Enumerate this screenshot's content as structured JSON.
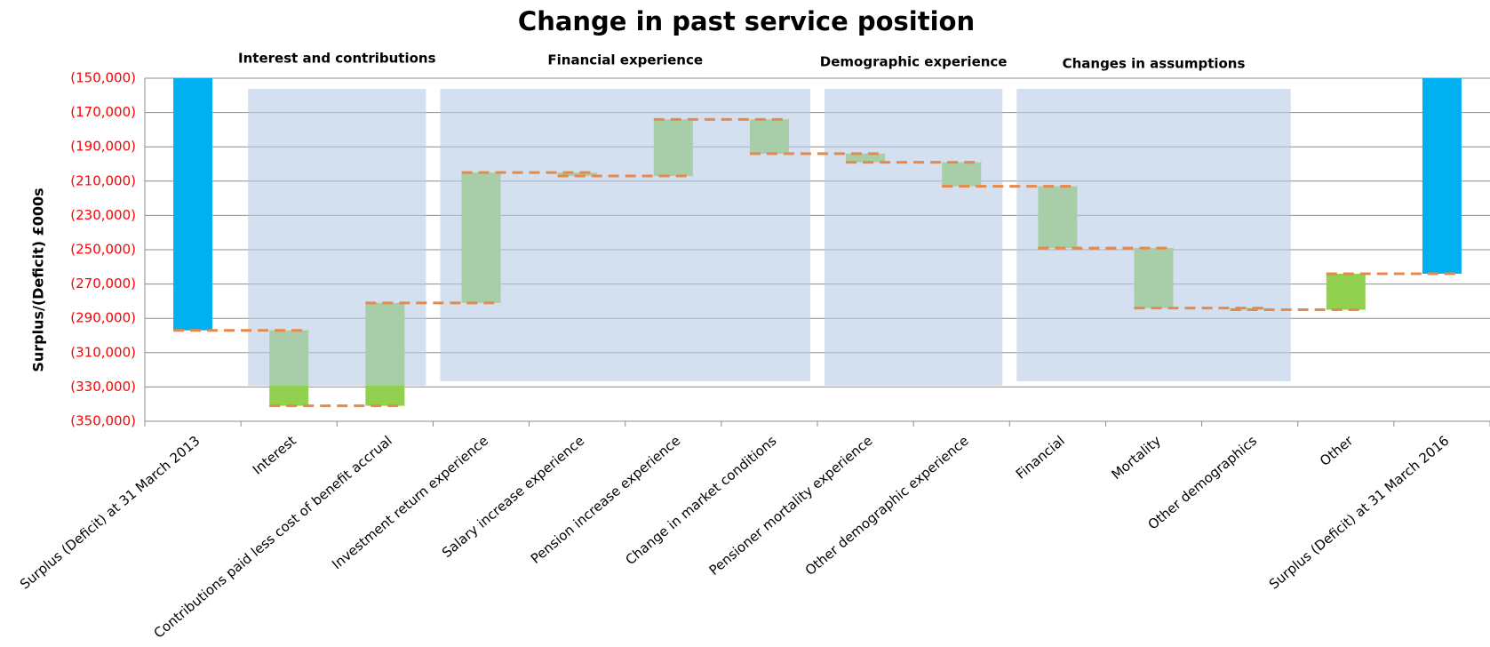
{
  "chart_data": {
    "type": "waterfall",
    "title": "Change in past service position",
    "y_label": "Surplus/(Deficit)  £000s",
    "categories": [
      "Surplus (Deficit) at 31 March 2013",
      "Interest",
      "Contributions paid less cost of benefit accrual",
      "Investment return experience",
      "Salary increase experience",
      "Pension increase experience",
      "Change in market conditions",
      "Pensioner mortality experience",
      "Other demographic experience",
      "Financial",
      "Mortality",
      "Other demographics",
      "Other",
      "Surplus (Deficit) at 31 March 2016"
    ],
    "values": [
      -297000,
      -44000,
      60000,
      76000,
      -2000,
      33000,
      -20000,
      -5000,
      -14000,
      -36000,
      -35000,
      -1000,
      21000,
      -264000
    ],
    "total_color": "#00b0f0",
    "change_color": "#92d050",
    "connector_color": "#e8894a",
    "group_color": "#b8cce4",
    "groups": [
      {
        "label": "Interest and contributions",
        "from": 1,
        "to": 2
      },
      {
        "label": "Financial experience",
        "from": 3,
        "to": 6
      },
      {
        "label": "Demographic experience",
        "from": 7,
        "to": 8
      },
      {
        "label": "Changes in assumptions",
        "from": 9,
        "to": 11
      }
    ],
    "ylim": [
      -350000,
      -150000
    ],
    "yticks": [
      {
        "value": -150000,
        "label": "(150,000)"
      },
      {
        "value": -170000,
        "label": "(170,000)"
      },
      {
        "value": -190000,
        "label": "(190,000)"
      },
      {
        "value": -210000,
        "label": "(210,000)"
      },
      {
        "value": -230000,
        "label": "(230,000)"
      },
      {
        "value": -250000,
        "label": "(250,000)"
      },
      {
        "value": -270000,
        "label": "(270,000)"
      },
      {
        "value": -290000,
        "label": "(290,000)"
      },
      {
        "value": -310000,
        "label": "(310,000)"
      },
      {
        "value": -330000,
        "label": "(330,000)"
      },
      {
        "value": -350000,
        "label": "(350,000)"
      }
    ],
    "grid": true
  }
}
